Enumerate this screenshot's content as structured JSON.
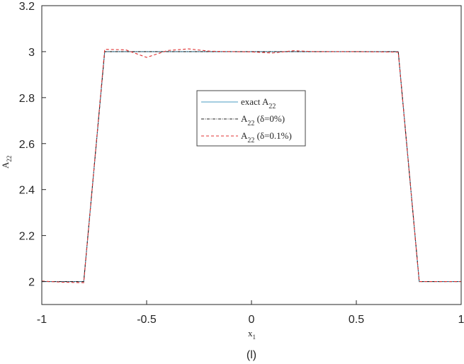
{
  "chart_data": {
    "type": "line",
    "xlabel": "x",
    "xlabel_sub": "1",
    "ylabel": "A",
    "ylabel_sub": "22",
    "caption": "(l)",
    "xlim": [
      -1,
      1
    ],
    "ylim": [
      1.9,
      3.2
    ],
    "xticks": [
      -1,
      -0.5,
      0,
      0.5,
      1
    ],
    "xtick_labels": [
      "-1",
      "-0.5",
      "0",
      "0.5",
      "1"
    ],
    "yticks": [
      2,
      2.2,
      2.4,
      2.6,
      2.8,
      3,
      3.2
    ],
    "ytick_labels": [
      "2",
      "2.2",
      "2.4",
      "2.6",
      "2.8",
      "3",
      "3.2"
    ],
    "grid": false,
    "legend_position": "center",
    "series": [
      {
        "name": "exact A22",
        "label_main": "exact A",
        "label_sub": "22",
        "label_tail": "",
        "color": "#4a9bc0",
        "style": "solid",
        "x": [
          -1,
          -0.8,
          -0.7,
          0.7,
          0.8,
          1
        ],
        "y": [
          2,
          2,
          3,
          3,
          2,
          2
        ]
      },
      {
        "name": "A22 (δ=0%)",
        "label_main": "A",
        "label_sub": "22",
        "label_tail": " (δ=0%)",
        "color": "#222222",
        "style": "dashdot",
        "x": [
          -1,
          -0.9,
          -0.8,
          -0.7,
          -0.6,
          -0.5,
          -0.4,
          -0.3,
          -0.2,
          -0.1,
          0,
          0.1,
          0.2,
          0.3,
          0.4,
          0.5,
          0.6,
          0.7,
          0.8,
          0.9,
          1
        ],
        "y": [
          2,
          2,
          2,
          3,
          3,
          3,
          3,
          3,
          3,
          3,
          3,
          3,
          3,
          3,
          3,
          3,
          3,
          3,
          2,
          2,
          2
        ]
      },
      {
        "name": "A22 (δ=0.1%)",
        "label_main": "A",
        "label_sub": "22",
        "label_tail": " (δ=0.1%)",
        "color": "#e03030",
        "style": "dashed",
        "x": [
          -1,
          -0.9,
          -0.8,
          -0.7,
          -0.6,
          -0.5,
          -0.4,
          -0.3,
          -0.2,
          -0.1,
          0,
          0.1,
          0.2,
          0.3,
          0.4,
          0.5,
          0.6,
          0.7,
          0.8,
          0.9,
          1
        ],
        "y": [
          2.002,
          1.997,
          1.995,
          3.01,
          3.008,
          2.975,
          3.005,
          3.012,
          3.002,
          3.0,
          2.999,
          2.994,
          3.004,
          3.0,
          3.0,
          3.0,
          2.999,
          2.998,
          2.0,
          2.0,
          2.0
        ]
      }
    ]
  }
}
